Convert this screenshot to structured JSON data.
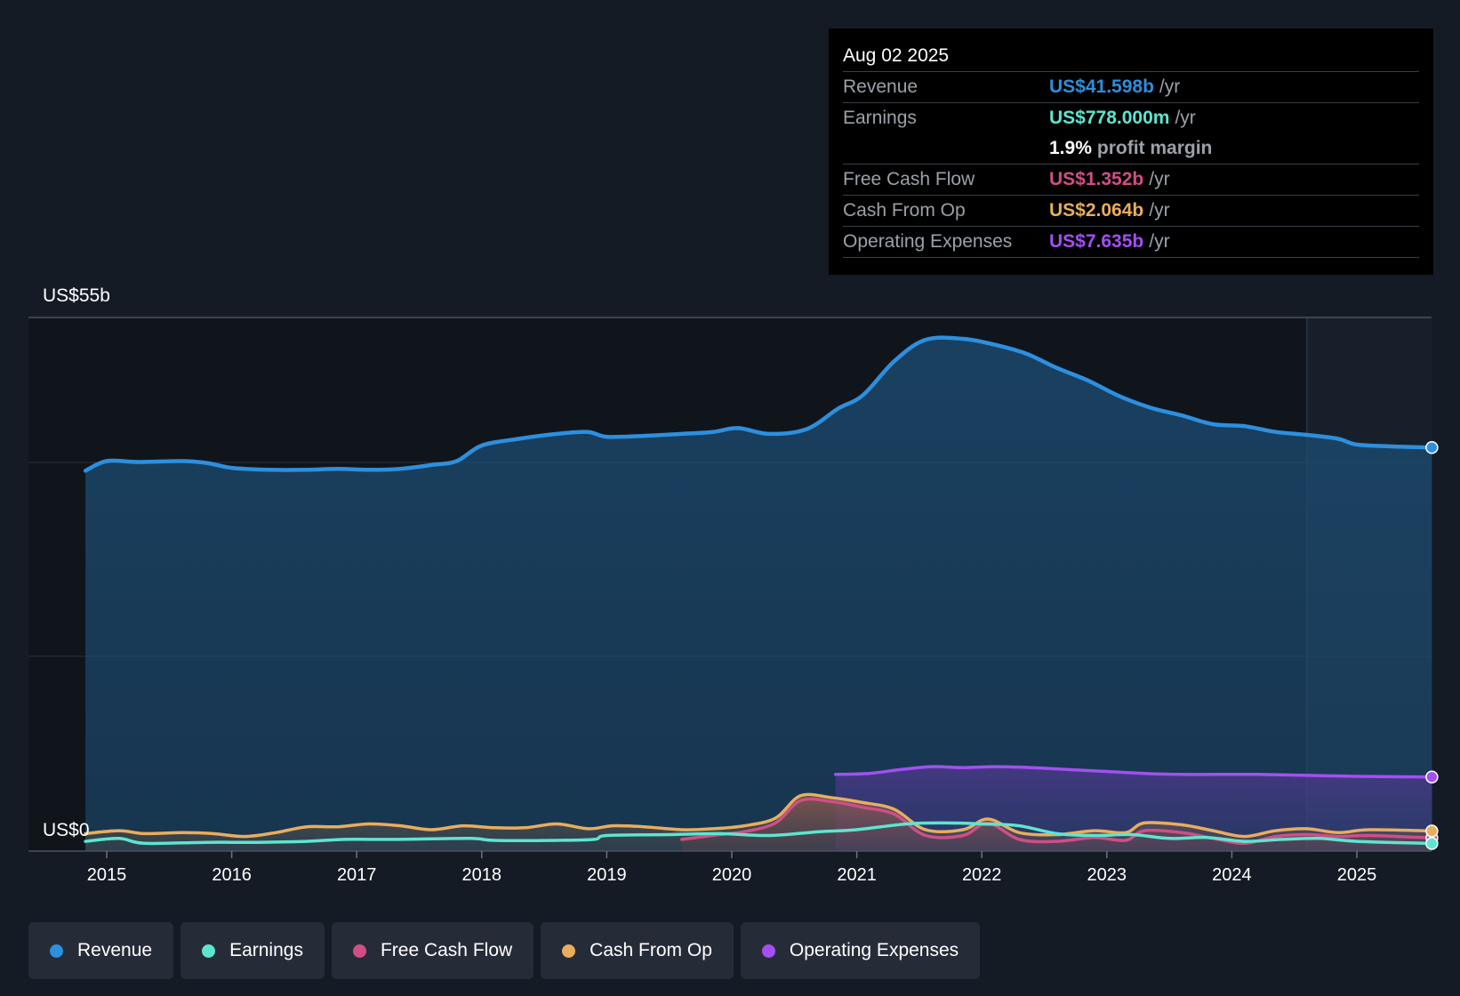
{
  "tooltip": {
    "date": "Aug 02 2025",
    "rows": [
      {
        "label": "Revenue",
        "value": "US$41.598b",
        "unit": "/yr",
        "color": "#2d8fde"
      },
      {
        "label": "Earnings",
        "value": "US$778.000m",
        "unit": "/yr",
        "color": "#5ee5cf"
      },
      {
        "label": "",
        "value": "1.9%",
        "unit": "profit margin",
        "color": "#ffffff"
      },
      {
        "label": "Free Cash Flow",
        "value": "US$1.352b",
        "unit": "/yr",
        "color": "#cf4f85"
      },
      {
        "label": "Cash From Op",
        "value": "US$2.064b",
        "unit": "/yr",
        "color": "#e8ad5e"
      },
      {
        "label": "Operating Expenses",
        "value": "US$7.635b",
        "unit": "/yr",
        "color": "#a34ff2"
      }
    ]
  },
  "legend": [
    {
      "label": "Revenue",
      "color": "#2d8fde"
    },
    {
      "label": "Earnings",
      "color": "#5ee5cf"
    },
    {
      "label": "Free Cash Flow",
      "color": "#cf4f85"
    },
    {
      "label": "Cash From Op",
      "color": "#e8ad5e"
    },
    {
      "label": "Operating Expenses",
      "color": "#a34ff2"
    }
  ],
  "chart_data": {
    "type": "line",
    "title": "",
    "ytop_label": "US$55b",
    "ybottom_label": "US$0",
    "ylim": [
      0,
      55
    ],
    "xlim": [
      2014.83,
      2025.6
    ],
    "xticks": [
      "2015",
      "2016",
      "2017",
      "2018",
      "2019",
      "2020",
      "2021",
      "2022",
      "2023",
      "2024",
      "2025"
    ],
    "forecast_start": 2024.6,
    "unit": "US$ billions",
    "series": [
      {
        "name": "Revenue",
        "color": "#2d8fde",
        "area": true,
        "points": [
          [
            2014.83,
            39.2
          ],
          [
            2015.0,
            40.2
          ],
          [
            2015.25,
            40.1
          ],
          [
            2015.6,
            40.2
          ],
          [
            2015.8,
            40.0
          ],
          [
            2016.0,
            39.5
          ],
          [
            2016.3,
            39.3
          ],
          [
            2016.6,
            39.3
          ],
          [
            2016.85,
            39.4
          ],
          [
            2017.1,
            39.3
          ],
          [
            2017.35,
            39.4
          ],
          [
            2017.6,
            39.8
          ],
          [
            2017.8,
            40.2
          ],
          [
            2018.0,
            41.8
          ],
          [
            2018.3,
            42.5
          ],
          [
            2018.6,
            43.0
          ],
          [
            2018.85,
            43.2
          ],
          [
            2019.0,
            42.7
          ],
          [
            2019.3,
            42.8
          ],
          [
            2019.6,
            43.0
          ],
          [
            2019.85,
            43.2
          ],
          [
            2020.05,
            43.6
          ],
          [
            2020.3,
            43.0
          ],
          [
            2020.6,
            43.5
          ],
          [
            2020.85,
            45.6
          ],
          [
            2021.05,
            47.0
          ],
          [
            2021.3,
            50.5
          ],
          [
            2021.55,
            52.7
          ],
          [
            2021.85,
            52.8
          ],
          [
            2022.1,
            52.2
          ],
          [
            2022.35,
            51.3
          ],
          [
            2022.6,
            49.8
          ],
          [
            2022.85,
            48.5
          ],
          [
            2023.1,
            46.9
          ],
          [
            2023.35,
            45.7
          ],
          [
            2023.6,
            44.9
          ],
          [
            2023.85,
            44.0
          ],
          [
            2024.1,
            43.8
          ],
          [
            2024.35,
            43.2
          ],
          [
            2024.6,
            42.9
          ],
          [
            2024.85,
            42.5
          ],
          [
            2025.0,
            41.9
          ],
          [
            2025.3,
            41.7
          ],
          [
            2025.6,
            41.598
          ]
        ]
      },
      {
        "name": "Earnings",
        "color": "#5ee5cf",
        "area": false,
        "points": [
          [
            2014.83,
            1.0
          ],
          [
            2015.1,
            1.3
          ],
          [
            2015.3,
            0.8
          ],
          [
            2015.8,
            0.9
          ],
          [
            2016.2,
            0.9
          ],
          [
            2016.6,
            1.0
          ],
          [
            2016.9,
            1.2
          ],
          [
            2017.3,
            1.2
          ],
          [
            2017.9,
            1.3
          ],
          [
            2018.1,
            1.1
          ],
          [
            2018.6,
            1.1
          ],
          [
            2018.9,
            1.2
          ],
          [
            2019.0,
            1.6
          ],
          [
            2019.5,
            1.7
          ],
          [
            2019.9,
            1.8
          ],
          [
            2020.3,
            1.6
          ],
          [
            2020.7,
            2.0
          ],
          [
            2021.0,
            2.2
          ],
          [
            2021.4,
            2.8
          ],
          [
            2021.7,
            2.9
          ],
          [
            2022.0,
            2.8
          ],
          [
            2022.3,
            2.6
          ],
          [
            2022.6,
            1.8
          ],
          [
            2022.9,
            1.6
          ],
          [
            2023.2,
            1.7
          ],
          [
            2023.5,
            1.3
          ],
          [
            2023.8,
            1.4
          ],
          [
            2024.1,
            1.0
          ],
          [
            2024.4,
            1.2
          ],
          [
            2024.7,
            1.3
          ],
          [
            2025.0,
            1.0
          ],
          [
            2025.6,
            0.778
          ]
        ]
      },
      {
        "name": "Free Cash Flow",
        "color": "#cf4f85",
        "area": true,
        "points": [
          [
            2019.6,
            1.2
          ],
          [
            2019.9,
            1.7
          ],
          [
            2020.1,
            2.0
          ],
          [
            2020.35,
            2.9
          ],
          [
            2020.55,
            5.2
          ],
          [
            2020.8,
            5.1
          ],
          [
            2021.05,
            4.5
          ],
          [
            2021.3,
            3.8
          ],
          [
            2021.55,
            1.6
          ],
          [
            2021.85,
            1.6
          ],
          [
            2022.05,
            2.9
          ],
          [
            2022.3,
            1.2
          ],
          [
            2022.6,
            1.0
          ],
          [
            2022.9,
            1.4
          ],
          [
            2023.15,
            1.1
          ],
          [
            2023.3,
            2.1
          ],
          [
            2023.6,
            1.9
          ],
          [
            2023.85,
            1.3
          ],
          [
            2024.1,
            0.8
          ],
          [
            2024.35,
            1.5
          ],
          [
            2024.6,
            1.7
          ],
          [
            2024.85,
            1.5
          ],
          [
            2025.1,
            1.6
          ],
          [
            2025.6,
            1.352
          ]
        ]
      },
      {
        "name": "Cash From Op",
        "color": "#e8ad5e",
        "area": true,
        "points": [
          [
            2014.83,
            1.8
          ],
          [
            2015.1,
            2.1
          ],
          [
            2015.3,
            1.8
          ],
          [
            2015.6,
            1.9
          ],
          [
            2015.85,
            1.8
          ],
          [
            2016.1,
            1.5
          ],
          [
            2016.35,
            1.9
          ],
          [
            2016.6,
            2.5
          ],
          [
            2016.85,
            2.5
          ],
          [
            2017.1,
            2.8
          ],
          [
            2017.35,
            2.6
          ],
          [
            2017.6,
            2.2
          ],
          [
            2017.85,
            2.6
          ],
          [
            2018.1,
            2.4
          ],
          [
            2018.35,
            2.4
          ],
          [
            2018.6,
            2.8
          ],
          [
            2018.85,
            2.3
          ],
          [
            2019.05,
            2.6
          ],
          [
            2019.3,
            2.5
          ],
          [
            2019.6,
            2.2
          ],
          [
            2019.85,
            2.3
          ],
          [
            2020.1,
            2.6
          ],
          [
            2020.35,
            3.4
          ],
          [
            2020.55,
            5.7
          ],
          [
            2020.8,
            5.5
          ],
          [
            2021.05,
            5.0
          ],
          [
            2021.3,
            4.3
          ],
          [
            2021.55,
            2.2
          ],
          [
            2021.85,
            2.2
          ],
          [
            2022.05,
            3.3
          ],
          [
            2022.3,
            1.9
          ],
          [
            2022.6,
            1.7
          ],
          [
            2022.9,
            2.1
          ],
          [
            2023.15,
            1.9
          ],
          [
            2023.3,
            2.9
          ],
          [
            2023.6,
            2.7
          ],
          [
            2023.85,
            2.1
          ],
          [
            2024.1,
            1.5
          ],
          [
            2024.35,
            2.1
          ],
          [
            2024.6,
            2.3
          ],
          [
            2024.85,
            1.9
          ],
          [
            2025.1,
            2.2
          ],
          [
            2025.6,
            2.064
          ]
        ]
      },
      {
        "name": "Operating Expenses",
        "color": "#a34ff2",
        "area": true,
        "points": [
          [
            2020.83,
            7.9
          ],
          [
            2021.1,
            8.0
          ],
          [
            2021.35,
            8.4
          ],
          [
            2021.6,
            8.7
          ],
          [
            2021.85,
            8.6
          ],
          [
            2022.1,
            8.7
          ],
          [
            2022.4,
            8.6
          ],
          [
            2022.7,
            8.4
          ],
          [
            2023.0,
            8.2
          ],
          [
            2023.3,
            8.0
          ],
          [
            2023.6,
            7.9
          ],
          [
            2023.9,
            7.9
          ],
          [
            2024.2,
            7.9
          ],
          [
            2024.6,
            7.8
          ],
          [
            2025.0,
            7.7
          ],
          [
            2025.6,
            7.635
          ]
        ]
      }
    ]
  }
}
